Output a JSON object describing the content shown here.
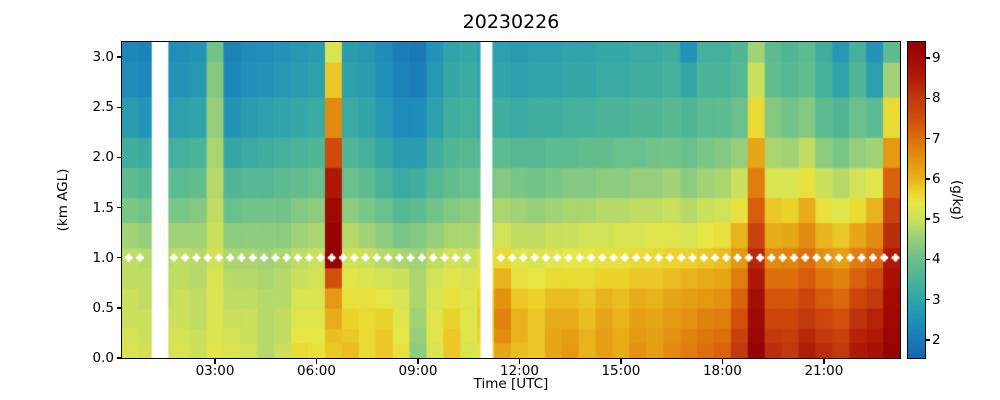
{
  "figure": {
    "title": "20230226"
  },
  "axes": {
    "ylabel": "(km AGL)",
    "xlabel": "Time [UTC]",
    "y_ticks": [
      {
        "value": 0.0,
        "label": "0.0"
      },
      {
        "value": 0.5,
        "label": "0.5"
      },
      {
        "value": 1.0,
        "label": "1.0"
      },
      {
        "value": 1.5,
        "label": "1.5"
      },
      {
        "value": 2.0,
        "label": "2.0"
      },
      {
        "value": 2.5,
        "label": "2.5"
      },
      {
        "value": 3.0,
        "label": "3.0"
      }
    ],
    "x_ticks": [
      {
        "hour": 3,
        "label": "03:00"
      },
      {
        "hour": 6,
        "label": "06:00"
      },
      {
        "hour": 9,
        "label": "09:00"
      },
      {
        "hour": 12,
        "label": "12:00"
      },
      {
        "hour": 15,
        "label": "15:00"
      },
      {
        "hour": 18,
        "label": "18:00"
      },
      {
        "hour": 21,
        "label": "21:00"
      }
    ]
  },
  "colorbar": {
    "label": "(g/kg)",
    "ticks": [
      {
        "value": 2,
        "label": "2"
      },
      {
        "value": 3,
        "label": "3"
      },
      {
        "value": 4,
        "label": "4"
      },
      {
        "value": 5,
        "label": "5"
      },
      {
        "value": 6,
        "label": "6"
      },
      {
        "value": 7,
        "label": "7"
      },
      {
        "value": 8,
        "label": "8"
      },
      {
        "value": 9,
        "label": "9"
      }
    ]
  },
  "chart_data": {
    "type": "heatmap",
    "title": "20230226",
    "xlabel": "Time [UTC]",
    "ylabel": "(km AGL)",
    "units": "g/kg",
    "x_range_hours": [
      0.25,
      23.25
    ],
    "y_range_km": [
      0.0,
      3.15
    ],
    "time_start_hour": 0.25,
    "time_step_hours": 0.5,
    "n_columns": 46,
    "level_edges_km": [
      0,
      0.15,
      0.3,
      0.5,
      0.7,
      0.9,
      1.1,
      1.35,
      1.6,
      1.9,
      2.2,
      2.6,
      2.95,
      3.15
    ],
    "values_g_per_kg": [
      [
        5.2,
        5.1,
        5.0,
        5.0,
        4.9,
        4.9,
        4.6,
        4.2,
        3.8,
        3.3,
        2.8,
        2.4,
        2.3
      ],
      [
        5.1,
        5.0,
        5.0,
        4.9,
        4.9,
        4.8,
        4.5,
        4.1,
        3.7,
        3.2,
        2.6,
        2.3,
        2.2
      ],
      [
        5.1,
        5.1,
        5.0,
        4.9,
        4.9,
        4.8,
        4.6,
        4.2,
        3.8,
        3.3,
        2.8,
        2.5,
        2.4
      ],
      [
        5.2,
        5.1,
        5.0,
        5.0,
        4.9,
        4.9,
        4.6,
        4.2,
        3.8,
        3.4,
        2.9,
        2.6,
        2.5
      ],
      [
        5.0,
        5.0,
        4.9,
        4.9,
        4.8,
        4.8,
        4.6,
        4.3,
        3.9,
        3.5,
        3.0,
        2.7,
        2.6
      ],
      [
        5.3,
        5.2,
        5.2,
        5.2,
        5.2,
        5.1,
        5.0,
        4.9,
        4.8,
        4.7,
        4.5,
        4.3,
        4.1
      ],
      [
        5.2,
        5.1,
        5.0,
        4.9,
        4.8,
        4.7,
        4.4,
        4.0,
        3.6,
        3.1,
        2.6,
        2.3,
        2.2
      ],
      [
        5.1,
        5.0,
        5.0,
        4.9,
        4.8,
        4.7,
        4.4,
        4.1,
        3.7,
        3.2,
        2.8,
        2.5,
        2.4
      ],
      [
        4.8,
        4.8,
        4.8,
        4.8,
        4.7,
        4.6,
        4.4,
        4.1,
        3.7,
        3.3,
        2.9,
        2.6,
        2.5
      ],
      [
        5.0,
        4.9,
        4.9,
        4.8,
        4.8,
        4.7,
        4.4,
        4.1,
        3.8,
        3.4,
        3.0,
        2.7,
        2.6
      ],
      [
        5.6,
        5.4,
        5.3,
        5.2,
        5.0,
        4.9,
        4.6,
        4.3,
        3.9,
        3.5,
        3.1,
        2.8,
        2.7
      ],
      [
        5.5,
        5.4,
        5.3,
        5.2,
        5.1,
        5.0,
        4.7,
        4.4,
        4.0,
        3.6,
        3.2,
        2.9,
        2.8
      ],
      [
        5.8,
        5.9,
        6.1,
        6.4,
        7.5,
        9.3,
        9.3,
        9.1,
        8.6,
        7.6,
        6.6,
        5.8,
        5.2
      ],
      [
        5.9,
        5.8,
        5.7,
        5.5,
        5.3,
        5.1,
        4.8,
        4.4,
        4.0,
        3.6,
        3.2,
        2.9,
        2.8
      ],
      [
        5.6,
        5.6,
        5.6,
        5.5,
        5.2,
        5.0,
        4.6,
        4.2,
        3.8,
        3.4,
        3.0,
        2.8,
        2.7
      ],
      [
        5.8,
        5.8,
        5.7,
        5.4,
        5.1,
        4.8,
        4.4,
        4.0,
        3.5,
        3.1,
        2.7,
        2.5,
        2.4
      ],
      [
        5.5,
        5.4,
        5.3,
        5.2,
        5.0,
        4.7,
        4.2,
        3.7,
        3.2,
        2.8,
        2.4,
        2.2,
        2.1
      ],
      [
        4.4,
        4.5,
        4.6,
        4.7,
        4.7,
        4.6,
        4.3,
        3.8,
        3.3,
        2.8,
        2.4,
        2.1,
        2.0
      ],
      [
        5.2,
        5.3,
        5.3,
        5.2,
        5.1,
        4.9,
        4.5,
        4.1,
        3.7,
        3.3,
        2.9,
        2.7,
        2.6
      ],
      [
        5.8,
        5.8,
        5.7,
        5.5,
        5.3,
        5.1,
        4.7,
        4.3,
        3.9,
        3.6,
        3.3,
        3.1,
        3.0
      ],
      [
        5.2,
        5.3,
        5.3,
        5.3,
        5.2,
        5.0,
        4.7,
        4.4,
        4.0,
        3.7,
        3.4,
        3.2,
        3.1
      ],
      [
        5.5,
        5.7,
        5.8,
        5.7,
        5.5,
        5.2,
        4.8,
        4.4,
        4.0,
        3.6,
        3.2,
        3.0,
        2.9
      ],
      [
        6.2,
        6.6,
        6.7,
        6.5,
        6.0,
        5.6,
        5.1,
        4.7,
        4.3,
        3.8,
        3.3,
        3.0,
        2.9
      ],
      [
        5.9,
        6.0,
        6.0,
        5.8,
        5.5,
        5.3,
        4.9,
        4.6,
        4.2,
        3.7,
        3.2,
        2.9,
        2.8
      ],
      [
        5.8,
        5.8,
        5.8,
        5.7,
        5.4,
        5.2,
        4.9,
        4.5,
        4.1,
        3.7,
        3.3,
        3.0,
        2.9
      ],
      [
        6.2,
        6.2,
        6.1,
        5.9,
        5.6,
        5.3,
        5.0,
        4.6,
        4.2,
        3.8,
        3.3,
        3.0,
        2.9
      ],
      [
        6.4,
        6.3,
        6.1,
        5.9,
        5.6,
        5.4,
        5.0,
        4.7,
        4.3,
        3.8,
        3.4,
        3.1,
        3.0
      ],
      [
        6.0,
        6.0,
        5.9,
        5.8,
        5.6,
        5.4,
        5.1,
        4.7,
        4.3,
        3.9,
        3.4,
        3.1,
        3.0
      ],
      [
        6.3,
        6.3,
        6.2,
        6.0,
        5.7,
        5.5,
        5.1,
        4.8,
        4.4,
        3.9,
        3.5,
        3.2,
        3.1
      ],
      [
        6.1,
        6.1,
        6.0,
        5.9,
        5.7,
        5.5,
        5.2,
        4.8,
        4.4,
        4.0,
        3.5,
        3.2,
        3.1
      ],
      [
        6.5,
        6.4,
        6.3,
        6.1,
        5.8,
        5.6,
        5.2,
        4.9,
        4.5,
        4.0,
        3.6,
        3.3,
        3.2
      ],
      [
        6.3,
        6.3,
        6.2,
        6.0,
        5.8,
        5.6,
        5.3,
        4.9,
        4.5,
        4.1,
        3.6,
        3.3,
        3.2
      ],
      [
        6.6,
        6.5,
        6.4,
        6.2,
        5.9,
        5.7,
        5.3,
        5.0,
        4.6,
        4.1,
        3.7,
        3.4,
        3.3
      ],
      [
        6.8,
        6.7,
        6.5,
        6.3,
        6.0,
        5.7,
        5.2,
        4.8,
        4.4,
        4.0,
        3.6,
        3.1,
        2.6
      ],
      [
        7.0,
        6.9,
        6.7,
        6.4,
        6.1,
        5.8,
        5.4,
        5.0,
        4.6,
        4.2,
        3.8,
        3.5,
        3.4
      ],
      [
        7.2,
        7.0,
        6.8,
        6.5,
        6.2,
        5.9,
        5.5,
        5.1,
        4.7,
        4.3,
        3.8,
        3.5,
        3.4
      ],
      [
        8.0,
        7.8,
        7.5,
        7.2,
        6.8,
        6.4,
        6.0,
        5.5,
        5.0,
        4.5,
        4.0,
        3.7,
        3.6
      ],
      [
        9.3,
        9.2,
        9.1,
        8.9,
        8.6,
        8.3,
        7.8,
        7.3,
        6.8,
        6.2,
        5.6,
        5.0,
        4.6
      ],
      [
        8.2,
        8.0,
        7.7,
        7.4,
        7.0,
        6.6,
        6.1,
        5.8,
        5.2,
        4.7,
        4.3,
        3.9,
        3.8
      ],
      [
        8.0,
        7.9,
        7.7,
        7.4,
        7.0,
        6.7,
        6.2,
        5.7,
        5.2,
        4.6,
        4.1,
        3.7,
        3.6
      ],
      [
        8.5,
        8.3,
        8.0,
        7.7,
        7.3,
        7.0,
        6.6,
        6.1,
        5.5,
        4.9,
        4.3,
        3.9,
        3.8
      ],
      [
        8.2,
        8.0,
        7.7,
        7.3,
        6.9,
        6.5,
        6.0,
        5.5,
        5.0,
        4.4,
        3.8,
        3.4,
        3.3
      ],
      [
        8.0,
        7.8,
        7.5,
        7.1,
        6.7,
        6.3,
        5.8,
        5.3,
        4.8,
        4.2,
        3.6,
        3.0,
        2.7
      ],
      [
        8.6,
        8.4,
        8.1,
        7.7,
        7.2,
        6.8,
        6.2,
        5.6,
        5.1,
        4.5,
        4.0,
        3.6,
        3.4
      ],
      [
        8.8,
        8.6,
        8.4,
        8.0,
        7.6,
        7.1,
        6.6,
        6.0,
        5.3,
        4.6,
        3.8,
        2.9,
        2.6
      ],
      [
        9.3,
        9.2,
        9.1,
        9.0,
        8.8,
        8.6,
        8.2,
        7.8,
        7.2,
        6.4,
        5.6,
        4.6,
        3.8
      ]
    ],
    "missing_gaps_hours": [
      [
        1.13,
        1.62
      ],
      [
        10.85,
        11.2
      ]
    ],
    "markers": {
      "shape": "plus",
      "color": "#ffffff",
      "y_km": 1.0,
      "start_hour": 0.45,
      "step_hours": 0.33333,
      "end_hour": 23.18
    },
    "colormap": {
      "vmin": 1.55,
      "vmax": 9.4,
      "stops": [
        [
          1.55,
          "#1266b0"
        ],
        [
          2.0,
          "#1a7ab8"
        ],
        [
          2.5,
          "#2090ba"
        ],
        [
          3.0,
          "#30a4aa"
        ],
        [
          3.5,
          "#4ab398"
        ],
        [
          4.0,
          "#68c08c"
        ],
        [
          4.5,
          "#96ce7c"
        ],
        [
          5.0,
          "#cbe05c"
        ],
        [
          5.4,
          "#e6e745"
        ],
        [
          5.7,
          "#ecd32c"
        ],
        [
          6.0,
          "#e9b31d"
        ],
        [
          6.4,
          "#e59812"
        ],
        [
          6.8,
          "#e07d0e"
        ],
        [
          7.2,
          "#da620c"
        ],
        [
          7.6,
          "#cf4a0b"
        ],
        [
          8.0,
          "#c2390e"
        ],
        [
          8.5,
          "#b01d07"
        ],
        [
          9.0,
          "#a10b04"
        ],
        [
          9.4,
          "#930101"
        ]
      ]
    },
    "grid": false,
    "legend": false,
    "background_missing_color": "#ffffff"
  }
}
